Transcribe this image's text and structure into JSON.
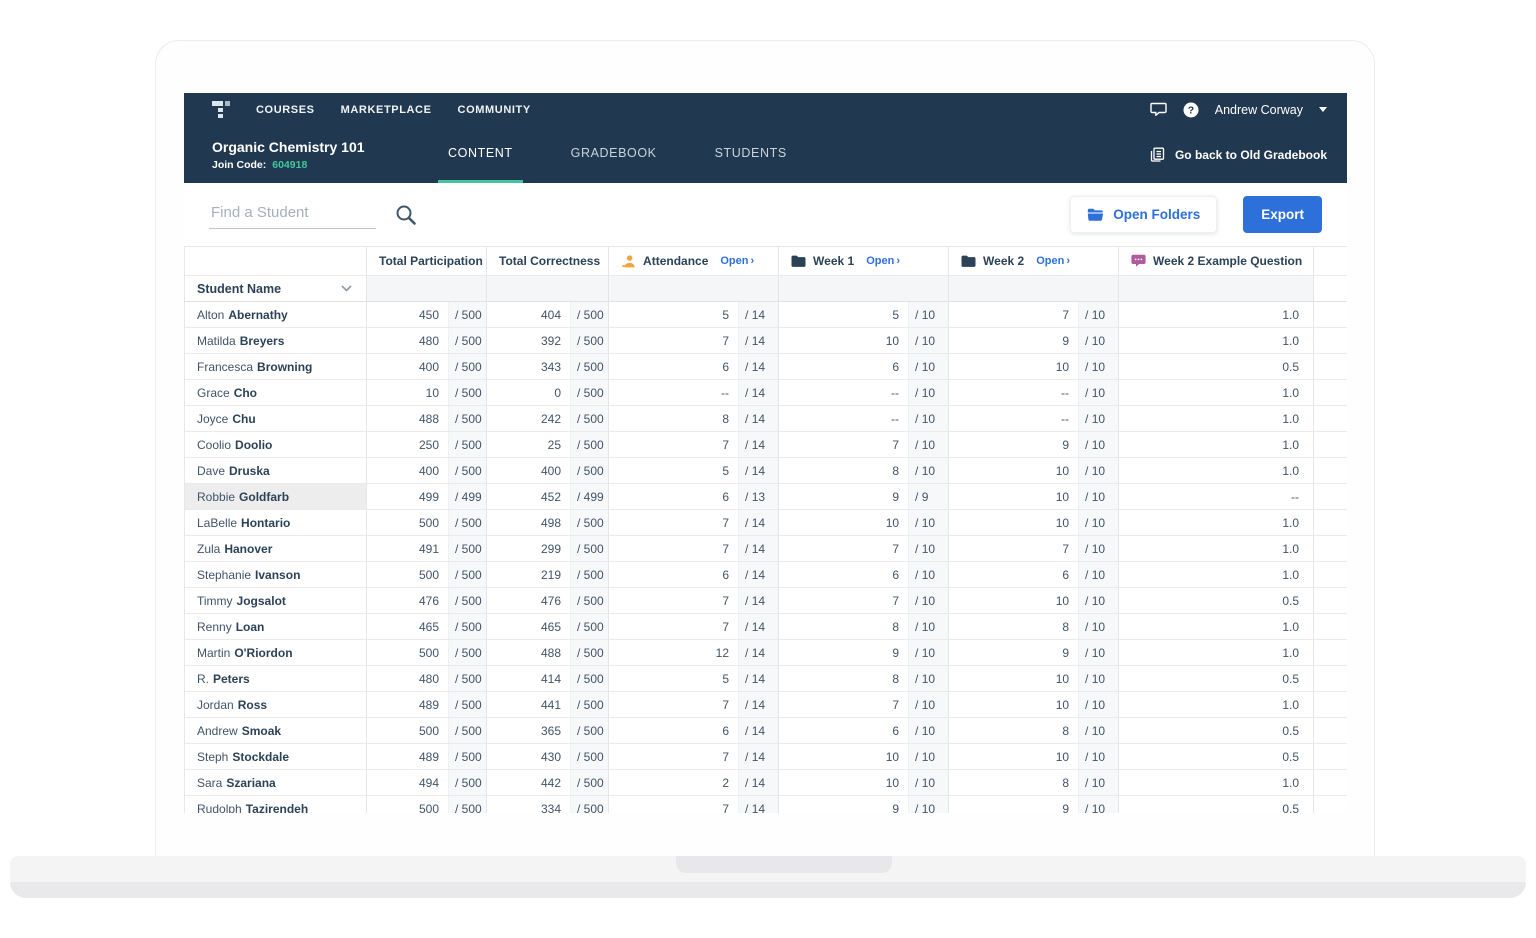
{
  "nav": {
    "items": [
      "COURSES",
      "MARKETPLACE",
      "COMMUNITY"
    ],
    "user_name": "Andrew Corway"
  },
  "course": {
    "title": "Organic Chemistry 101",
    "join_code_label": "Join Code:",
    "join_code": "604918",
    "tabs": [
      "CONTENT",
      "GRADEBOOK",
      "STUDENTS"
    ],
    "active_tab": "CONTENT",
    "old_gradebook": "Go back to Old Gradebook"
  },
  "toolbar": {
    "search_placeholder": "Find a Student",
    "open_folders": "Open Folders",
    "export": "Export"
  },
  "table": {
    "student_header": "Student Name",
    "open_label": "Open",
    "open_chevron": "›",
    "columns": {
      "participation": "Total Participation",
      "correctness": "Total Correctness",
      "attendance": "Attendance",
      "week1": "Week 1",
      "week2": "Week 2",
      "example": "Week 2 Example Question"
    },
    "students": [
      {
        "first": "Alton",
        "last": "Abernathy",
        "participation": "450",
        "participation_max": "/ 500",
        "correctness": "404",
        "correctness_max": "/ 500",
        "attendance": "5",
        "attendance_max": "/ 14",
        "week1": "5",
        "week1_max": "/ 10",
        "week2": "7",
        "week2_max": "/ 10",
        "example": "1.0",
        "highlight": false
      },
      {
        "first": "Matilda",
        "last": "Breyers",
        "participation": "480",
        "participation_max": "/ 500",
        "correctness": "392",
        "correctness_max": "/ 500",
        "attendance": "7",
        "attendance_max": "/ 14",
        "week1": "10",
        "week1_max": "/ 10",
        "week2": "9",
        "week2_max": "/ 10",
        "example": "1.0",
        "highlight": false
      },
      {
        "first": "Francesca",
        "last": "Browning",
        "participation": "400",
        "participation_max": "/ 500",
        "correctness": "343",
        "correctness_max": "/ 500",
        "attendance": "6",
        "attendance_max": "/ 14",
        "week1": "6",
        "week1_max": "/ 10",
        "week2": "10",
        "week2_max": "/ 10",
        "example": "0.5",
        "highlight": false
      },
      {
        "first": "Grace",
        "last": "Cho",
        "participation": "10",
        "participation_max": "/ 500",
        "correctness": "0",
        "correctness_max": "/ 500",
        "attendance": "--",
        "attendance_max": "/ 14",
        "week1": "--",
        "week1_max": "/ 10",
        "week2": "--",
        "week2_max": "/ 10",
        "example": "1.0",
        "highlight": false
      },
      {
        "first": "Joyce",
        "last": "Chu",
        "participation": "488",
        "participation_max": "/ 500",
        "correctness": "242",
        "correctness_max": "/ 500",
        "attendance": "8",
        "attendance_max": "/ 14",
        "week1": "--",
        "week1_max": "/ 10",
        "week2": "--",
        "week2_max": "/ 10",
        "example": "1.0",
        "highlight": false
      },
      {
        "first": "Coolio",
        "last": "Doolio",
        "participation": "250",
        "participation_max": "/ 500",
        "correctness": "25",
        "correctness_max": "/ 500",
        "attendance": "7",
        "attendance_max": "/ 14",
        "week1": "7",
        "week1_max": "/ 10",
        "week2": "9",
        "week2_max": "/ 10",
        "example": "1.0",
        "highlight": false
      },
      {
        "first": "Dave",
        "last": "Druska",
        "participation": "400",
        "participation_max": "/ 500",
        "correctness": "400",
        "correctness_max": "/ 500",
        "attendance": "5",
        "attendance_max": "/ 14",
        "week1": "8",
        "week1_max": "/ 10",
        "week2": "10",
        "week2_max": "/ 10",
        "example": "1.0",
        "highlight": false
      },
      {
        "first": "Robbie",
        "last": "Goldfarb",
        "participation": "499",
        "participation_max": "/ 499",
        "correctness": "452",
        "correctness_max": "/ 499",
        "attendance": "6",
        "attendance_max": "/ 13",
        "week1": "9",
        "week1_max": "/ 9",
        "week2": "10",
        "week2_max": "/ 10",
        "example": "--",
        "highlight": true
      },
      {
        "first": "LaBelle",
        "last": "Hontario",
        "participation": "500",
        "participation_max": "/ 500",
        "correctness": "498",
        "correctness_max": "/ 500",
        "attendance": "7",
        "attendance_max": "/ 14",
        "week1": "10",
        "week1_max": "/ 10",
        "week2": "10",
        "week2_max": "/ 10",
        "example": "1.0",
        "highlight": false
      },
      {
        "first": "Zula",
        "last": "Hanover",
        "participation": "491",
        "participation_max": "/ 500",
        "correctness": "299",
        "correctness_max": "/ 500",
        "attendance": "7",
        "attendance_max": "/ 14",
        "week1": "7",
        "week1_max": "/ 10",
        "week2": "7",
        "week2_max": "/ 10",
        "example": "1.0",
        "highlight": false
      },
      {
        "first": "Stephanie",
        "last": "Ivanson",
        "participation": "500",
        "participation_max": "/ 500",
        "correctness": "219",
        "correctness_max": "/ 500",
        "attendance": "6",
        "attendance_max": "/ 14",
        "week1": "6",
        "week1_max": "/ 10",
        "week2": "6",
        "week2_max": "/ 10",
        "example": "1.0",
        "highlight": false
      },
      {
        "first": "Timmy",
        "last": "Jogsalot",
        "participation": "476",
        "participation_max": "/ 500",
        "correctness": "476",
        "correctness_max": "/ 500",
        "attendance": "7",
        "attendance_max": "/ 14",
        "week1": "7",
        "week1_max": "/ 10",
        "week2": "10",
        "week2_max": "/ 10",
        "example": "0.5",
        "highlight": false
      },
      {
        "first": "Renny",
        "last": "Loan",
        "participation": "465",
        "participation_max": "/ 500",
        "correctness": "465",
        "correctness_max": "/ 500",
        "attendance": "7",
        "attendance_max": "/ 14",
        "week1": "8",
        "week1_max": "/ 10",
        "week2": "8",
        "week2_max": "/ 10",
        "example": "1.0",
        "highlight": false
      },
      {
        "first": "Martin",
        "last": "O'Riordon",
        "participation": "500",
        "participation_max": "/ 500",
        "correctness": "488",
        "correctness_max": "/ 500",
        "attendance": "12",
        "attendance_max": "/ 14",
        "week1": "9",
        "week1_max": "/ 10",
        "week2": "9",
        "week2_max": "/ 10",
        "example": "1.0",
        "highlight": false
      },
      {
        "first": "R.",
        "last": "Peters",
        "participation": "480",
        "participation_max": "/ 500",
        "correctness": "414",
        "correctness_max": "/ 500",
        "attendance": "5",
        "attendance_max": "/ 14",
        "week1": "8",
        "week1_max": "/ 10",
        "week2": "10",
        "week2_max": "/ 10",
        "example": "0.5",
        "highlight": false
      },
      {
        "first": "Jordan",
        "last": "Ross",
        "participation": "489",
        "participation_max": "/ 500",
        "correctness": "441",
        "correctness_max": "/ 500",
        "attendance": "7",
        "attendance_max": "/ 14",
        "week1": "7",
        "week1_max": "/ 10",
        "week2": "10",
        "week2_max": "/ 10",
        "example": "1.0",
        "highlight": false
      },
      {
        "first": "Andrew",
        "last": "Smoak",
        "participation": "500",
        "participation_max": "/ 500",
        "correctness": "365",
        "correctness_max": "/ 500",
        "attendance": "6",
        "attendance_max": "/ 14",
        "week1": "6",
        "week1_max": "/ 10",
        "week2": "8",
        "week2_max": "/ 10",
        "example": "0.5",
        "highlight": false
      },
      {
        "first": "Steph",
        "last": "Stockdale",
        "participation": "489",
        "participation_max": "/ 500",
        "correctness": "430",
        "correctness_max": "/ 500",
        "attendance": "7",
        "attendance_max": "/ 14",
        "week1": "10",
        "week1_max": "/ 10",
        "week2": "10",
        "week2_max": "/ 10",
        "example": "0.5",
        "highlight": false
      },
      {
        "first": "Sara",
        "last": "Szariana",
        "participation": "494",
        "participation_max": "/ 500",
        "correctness": "442",
        "correctness_max": "/ 500",
        "attendance": "2",
        "attendance_max": "/ 14",
        "week1": "10",
        "week1_max": "/ 10",
        "week2": "8",
        "week2_max": "/ 10",
        "example": "1.0",
        "highlight": false
      },
      {
        "first": "Rudolph",
        "last": "Tazirendeh",
        "participation": "500",
        "participation_max": "/ 500",
        "correctness": "334",
        "correctness_max": "/ 500",
        "attendance": "7",
        "attendance_max": "/ 14",
        "week1": "9",
        "week1_max": "/ 10",
        "week2": "9",
        "week2_max": "/ 10",
        "example": "0.5",
        "highlight": false
      }
    ]
  },
  "colors": {
    "header_navy": "#213950",
    "accent_teal": "#43c6a0",
    "link_blue": "#2e70d9",
    "attendance_orange": "#f2a33c",
    "question_purple": "#af5b9d"
  }
}
